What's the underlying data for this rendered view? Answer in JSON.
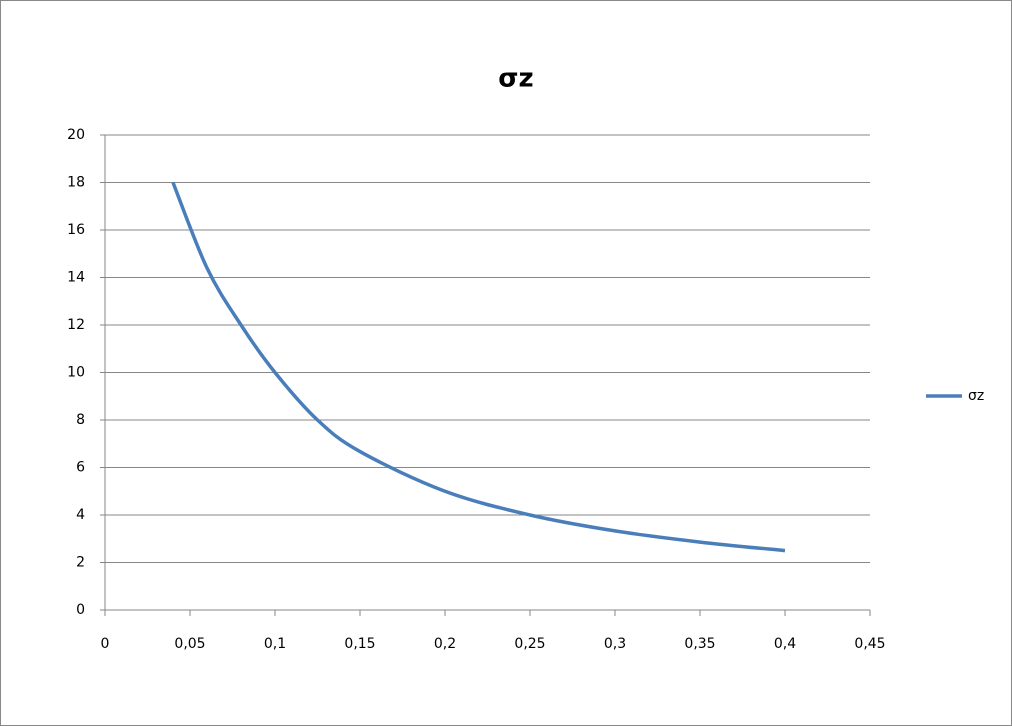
{
  "chart_data": {
    "type": "line",
    "title": "σz",
    "x": [
      0.04,
      0.06,
      0.08,
      0.1,
      0.125,
      0.15,
      0.2,
      0.25,
      0.3,
      0.35,
      0.4
    ],
    "series": [
      {
        "name": "σz",
        "color": "#4a7ebb",
        "values": [
          18,
          14.4,
          12,
          10,
          8,
          6.67,
          5,
          4,
          3.33,
          2.86,
          2.5
        ]
      }
    ],
    "xlim": [
      0,
      0.45
    ],
    "xticks": [
      0,
      {
        "value": 0.05,
        "label": "0,05"
      },
      {
        "value": 0.1,
        "label": "0,1"
      },
      {
        "value": 0.15,
        "label": "0,15"
      },
      {
        "value": 0.2,
        "label": "0,2"
      },
      {
        "value": 0.25,
        "label": "0,25"
      },
      {
        "value": 0.3,
        "label": "0,3"
      },
      {
        "value": 0.35,
        "label": "0,35"
      },
      {
        "value": 0.4,
        "label": "0,4"
      },
      {
        "value": 0.45,
        "label": "0,45"
      }
    ],
    "ylim": [
      0,
      20
    ],
    "yticks": [
      0,
      2,
      4,
      6,
      8,
      10,
      12,
      14,
      16,
      18,
      20
    ],
    "grid": true,
    "legend": "right"
  }
}
